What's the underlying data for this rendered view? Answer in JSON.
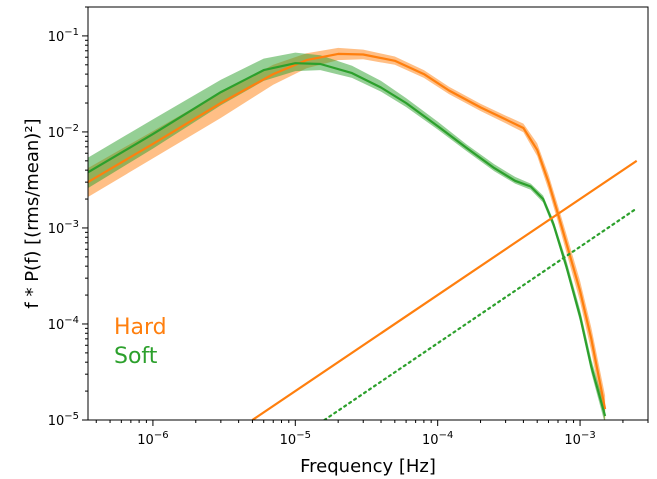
{
  "chart_data": {
    "type": "line",
    "xlabel": "Frequency [Hz]",
    "ylabel": "f * P(f) [(rms/mean)²]",
    "xscale": "log",
    "yscale": "log",
    "xlim": [
      3.5e-07,
      0.003
    ],
    "ylim": [
      1e-05,
      0.2
    ],
    "x_ticks": [
      {
        "value": 1e-06,
        "mant": "10",
        "exp": "−6"
      },
      {
        "value": 1e-05,
        "mant": "10",
        "exp": "−5"
      },
      {
        "value": 0.0001,
        "mant": "10",
        "exp": "−4"
      },
      {
        "value": 0.001,
        "mant": "10",
        "exp": "−3"
      }
    ],
    "y_ticks": [
      {
        "value": 1e-05,
        "mant": "10",
        "exp": "−5"
      },
      {
        "value": 0.0001,
        "mant": "10",
        "exp": "−4"
      },
      {
        "value": 0.001,
        "mant": "10",
        "exp": "−3"
      },
      {
        "value": 0.01,
        "mant": "10",
        "exp": "−2"
      },
      {
        "value": 0.1,
        "mant": "10",
        "exp": "−1"
      }
    ],
    "legend_placement": "lower-left",
    "legend": [
      {
        "name": "Hard",
        "color": "#ff7f0e"
      },
      {
        "name": "Soft",
        "color": "#2ca02c"
      }
    ],
    "series": [
      {
        "name": "Hard",
        "color": "#ff7f0e",
        "style": "solid-with-band",
        "x": [
          3.5e-07,
          1e-06,
          3e-06,
          7e-06,
          1.2e-05,
          2e-05,
          3e-05,
          5e-05,
          8e-05,
          0.00012,
          0.0002,
          0.0003,
          0.0004,
          0.0005,
          0.0006,
          0.0007,
          0.0008,
          0.001,
          0.0012,
          0.0015
        ],
        "y": [
          0.003,
          0.0075,
          0.02,
          0.04,
          0.056,
          0.065,
          0.064,
          0.055,
          0.04,
          0.027,
          0.018,
          0.0135,
          0.011,
          0.0065,
          0.003,
          0.0014,
          0.0007,
          0.00022,
          7e-05,
          1.3e-05
        ],
        "y_low": [
          0.0021,
          0.0053,
          0.014,
          0.031,
          0.046,
          0.056,
          0.057,
          0.05,
          0.0365,
          0.0248,
          0.0165,
          0.0123,
          0.0099,
          0.0056,
          0.0025,
          0.00115,
          0.00056,
          0.00017,
          5.2e-05,
          9e-06
        ],
        "y_high": [
          0.0042,
          0.0102,
          0.026,
          0.05,
          0.066,
          0.075,
          0.072,
          0.061,
          0.044,
          0.0295,
          0.0197,
          0.0148,
          0.0122,
          0.0076,
          0.0036,
          0.0017,
          0.00087,
          0.00028,
          9.2e-05,
          1.8e-05
        ]
      },
      {
        "name": "Soft",
        "color": "#2ca02c",
        "style": "solid-with-band",
        "x": [
          3.5e-07,
          1e-06,
          3e-06,
          6e-06,
          1e-05,
          1.5e-05,
          2.5e-05,
          4e-05,
          6e-05,
          0.0001,
          0.00016,
          0.00025,
          0.00035,
          0.00045,
          0.00055,
          0.00065,
          0.0008,
          0.001,
          0.0012,
          0.0015
        ],
        "y": [
          0.0038,
          0.0095,
          0.026,
          0.044,
          0.052,
          0.051,
          0.041,
          0.029,
          0.02,
          0.0115,
          0.0068,
          0.0042,
          0.0031,
          0.0027,
          0.002,
          0.0011,
          0.0004,
          0.00012,
          3.6e-05,
          1.1e-05
        ],
        "y_low": [
          0.0026,
          0.0067,
          0.019,
          0.034,
          0.043,
          0.044,
          0.0365,
          0.0263,
          0.0182,
          0.0106,
          0.0063,
          0.0039,
          0.0029,
          0.0025,
          0.00184,
          0.001,
          0.00036,
          0.000105,
          3.1e-05,
          9e-06
        ],
        "y_high": [
          0.0054,
          0.0135,
          0.035,
          0.058,
          0.067,
          0.063,
          0.049,
          0.034,
          0.0225,
          0.0128,
          0.0074,
          0.0046,
          0.0034,
          0.0029,
          0.00218,
          0.0012,
          0.00046,
          0.00014,
          4.3e-05,
          1.35e-05
        ]
      },
      {
        "name": "Hard",
        "color": "#ff7f0e",
        "style": "solid",
        "x": [
          5e-06,
          0.0025
        ],
        "y": [
          1e-05,
          0.005
        ]
      },
      {
        "name": "Soft",
        "color": "#2ca02c",
        "style": "dotted",
        "x": [
          1.6e-05,
          0.0025
        ],
        "y": [
          1e-05,
          0.0016
        ]
      }
    ]
  }
}
